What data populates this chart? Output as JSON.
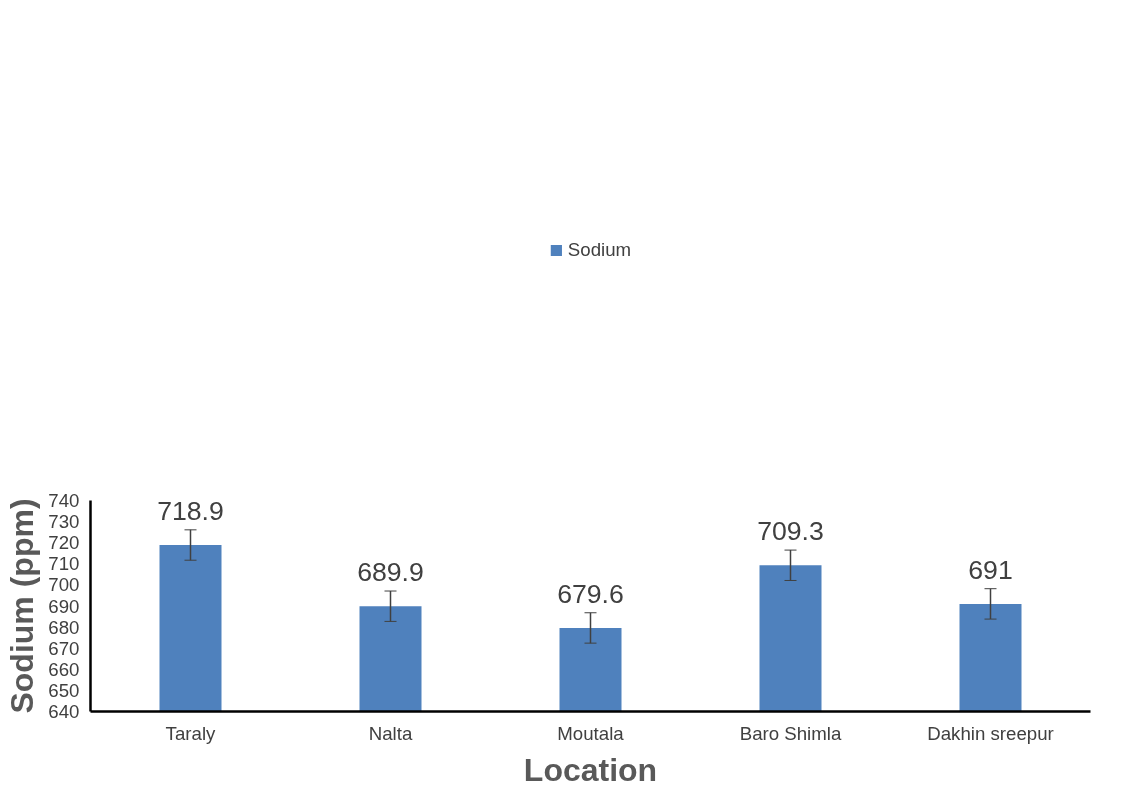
{
  "chart_data": {
    "type": "bar",
    "xlabel": "Location",
    "ylabel": "Sodium (ppm)",
    "categories": [
      "Taraly",
      "Nalta",
      "Moutala",
      "Baro Shimla",
      "Dakhin sreepur"
    ],
    "series": [
      {
        "name": "Sodium",
        "color": "#4f81bd",
        "values": [
          718.9,
          689.9,
          679.6,
          709.3,
          691
        ],
        "errors": [
          7.2,
          7.2,
          7.2,
          7.2,
          7.2
        ]
      }
    ],
    "ylim": [
      640,
      740
    ],
    "yticks": [
      640,
      650,
      660,
      670,
      680,
      690,
      700,
      710,
      720,
      730,
      740
    ],
    "data_labels": true,
    "legend": "top",
    "grid": false
  }
}
